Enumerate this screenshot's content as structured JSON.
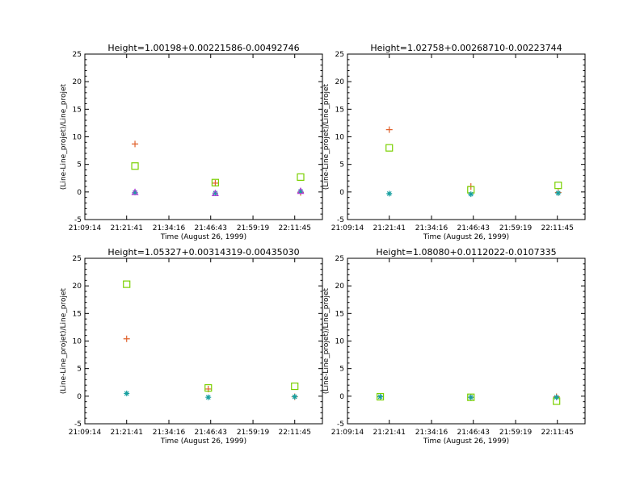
{
  "colors": {
    "background": "#ffffff",
    "axes": "#000000",
    "plus_series": "#e0602a",
    "square_series": "#7ad000",
    "star_series": "#18a0a0",
    "triangle_series": "#b040d8"
  },
  "chart_data": [
    {
      "type": "scatter",
      "title": "Height=1.00198+0.00221586-0.00492746",
      "xlabel": "Time (August 26, 1999)",
      "ylabel": "(Line-Line_projet)/Line_projet",
      "x_tick_labels": [
        "21:09:14",
        "21:21:41",
        "21:34:16",
        "21:46:43",
        "21:59:19",
        "22:11:45"
      ],
      "x_ticks": [
        "21:09:14",
        "21:21:41",
        "21:34:16",
        "21:46:43",
        "21:59:19",
        "22:11:45"
      ],
      "xlim": [
        "21:09:14",
        "22:20:00"
      ],
      "ylim": [
        -5,
        25
      ],
      "y_ticks": [
        -5,
        0,
        5,
        10,
        15,
        20,
        25
      ],
      "series": [
        {
          "marker": "plus",
          "x": [
            "21:24:10",
            "21:48:05",
            "22:13:30"
          ],
          "y": [
            8.7,
            1.6,
            -0.1
          ]
        },
        {
          "marker": "square",
          "x": [
            "21:24:10",
            "21:48:05",
            "22:13:30"
          ],
          "y": [
            4.7,
            1.7,
            2.7
          ]
        },
        {
          "marker": "star",
          "x": [
            "21:24:10",
            "21:48:05",
            "22:13:30"
          ],
          "y": [
            -0.1,
            -0.2,
            0.1
          ]
        },
        {
          "marker": "triangle",
          "x": [
            "21:24:10",
            "21:48:05",
            "22:13:30"
          ],
          "y": [
            -0.1,
            -0.3,
            0.1
          ]
        }
      ]
    },
    {
      "type": "scatter",
      "title": "Height=1.02758+0.00268710-0.00223744",
      "xlabel": "Time (August 26, 1999)",
      "ylabel": "(Line-Line_projet)/Line_projet",
      "x_tick_labels": [
        "21:09:14",
        "21:21:41",
        "21:34:16",
        "21:46:43",
        "21:59:19",
        "22:11:45"
      ],
      "x_ticks": [
        "21:09:14",
        "21:21:41",
        "21:34:16",
        "21:46:43",
        "21:59:19",
        "22:11:45"
      ],
      "xlim": [
        "21:09:14",
        "22:20:00"
      ],
      "ylim": [
        -5,
        25
      ],
      "y_ticks": [
        -5,
        0,
        5,
        10,
        15,
        20,
        25
      ],
      "series": [
        {
          "marker": "plus",
          "x": [
            "21:21:41",
            "21:46:00",
            "22:12:00"
          ],
          "y": [
            11.3,
            1.0,
            -0.1
          ]
        },
        {
          "marker": "square",
          "x": [
            "21:21:41",
            "21:46:00",
            "22:12:00"
          ],
          "y": [
            8.0,
            0.4,
            1.2
          ]
        },
        {
          "marker": "star",
          "x": [
            "21:21:41",
            "21:46:00",
            "22:12:00"
          ],
          "y": [
            -0.3,
            -0.4,
            -0.2
          ]
        }
      ]
    },
    {
      "type": "scatter",
      "title": "Height=1.05327+0.00314319-0.00435030",
      "xlabel": "Time (August 26, 1999)",
      "ylabel": "(Line-Line_projet)/Line_projet",
      "x_tick_labels": [
        "21:09:14",
        "21:21:41",
        "21:34:16",
        "21:46:43",
        "21:59:19",
        "22:11:45"
      ],
      "x_ticks": [
        "21:09:14",
        "21:21:41",
        "21:34:16",
        "21:46:43",
        "21:59:19",
        "22:11:45"
      ],
      "xlim": [
        "21:09:14",
        "22:20:00"
      ],
      "ylim": [
        -5,
        25
      ],
      "y_ticks": [
        -5,
        0,
        5,
        10,
        15,
        20,
        25
      ],
      "series": [
        {
          "marker": "plus",
          "x": [
            "21:21:41",
            "21:46:00",
            "22:11:45"
          ],
          "y": [
            10.4,
            1.3,
            -0.1
          ]
        },
        {
          "marker": "square",
          "x": [
            "21:21:41",
            "21:46:00",
            "22:11:45"
          ],
          "y": [
            20.3,
            1.5,
            1.8
          ]
        },
        {
          "marker": "star",
          "x": [
            "21:21:41",
            "21:46:00",
            "22:11:45"
          ],
          "y": [
            0.5,
            -0.2,
            -0.1
          ]
        }
      ]
    },
    {
      "type": "scatter",
      "title": "Height=1.08080+0.0112022-0.0107335",
      "xlabel": "Time (August 26, 1999)",
      "ylabel": "(Line-Line_projet)/Line_projet",
      "x_tick_labels": [
        "21:09:14",
        "21:21:41",
        "21:34:16",
        "21:46:43",
        "21:59:19",
        "22:11:45"
      ],
      "x_ticks": [
        "21:09:14",
        "21:21:41",
        "21:34:16",
        "21:46:43",
        "21:59:19",
        "22:11:45"
      ],
      "xlim": [
        "21:09:14",
        "22:20:00"
      ],
      "ylim": [
        -5,
        25
      ],
      "y_ticks": [
        -5,
        0,
        5,
        10,
        15,
        20,
        25
      ],
      "series": [
        {
          "marker": "plus",
          "x": [
            "21:19:00",
            "21:46:00",
            "22:11:30"
          ],
          "y": [
            -0.1,
            -0.2,
            -0.1
          ]
        },
        {
          "marker": "square",
          "x": [
            "21:19:00",
            "21:46:00",
            "22:11:30"
          ],
          "y": [
            -0.1,
            -0.2,
            -0.9
          ]
        },
        {
          "marker": "star",
          "x": [
            "21:19:00",
            "21:46:00",
            "22:11:30"
          ],
          "y": [
            -0.1,
            -0.2,
            -0.2
          ]
        }
      ]
    }
  ]
}
